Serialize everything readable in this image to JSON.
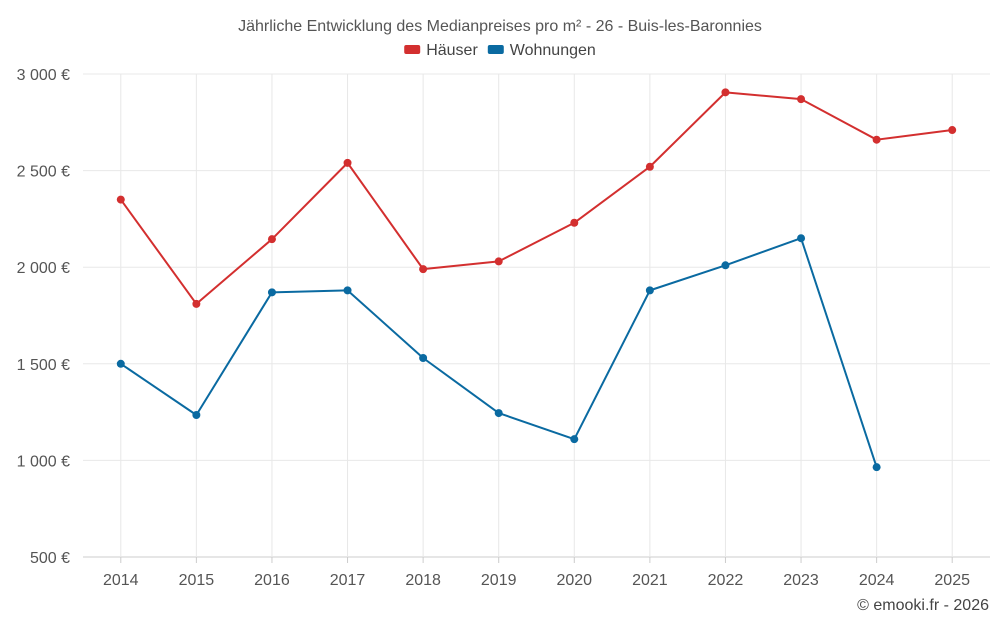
{
  "chart_data": {
    "type": "line",
    "title": "Jährliche Entwicklung des Medianpreises pro m² - 26 - Buis-les-Baronnies",
    "categories": [
      "2014",
      "2015",
      "2016",
      "2017",
      "2018",
      "2019",
      "2020",
      "2021",
      "2022",
      "2023",
      "2024",
      "2025"
    ],
    "y_ticks": [
      500,
      1000,
      1500,
      2000,
      2500,
      3000
    ],
    "y_tick_labels": [
      "500 €",
      "1 000 €",
      "1 500 €",
      "2 000 €",
      "2 500 €",
      "3 000 €"
    ],
    "ylim": [
      500,
      3000
    ],
    "grid": true,
    "legend_position": "top-center",
    "series": [
      {
        "name": "Häuser",
        "color": "#d32f2f",
        "values": [
          2350,
          1810,
          2145,
          2540,
          1990,
          2030,
          2230,
          2520,
          2905,
          2870,
          2660,
          2710
        ]
      },
      {
        "name": "Wohnungen",
        "color": "#0a6aa1",
        "values": [
          1500,
          1235,
          1870,
          1880,
          1530,
          1245,
          1110,
          1880,
          2010,
          2150,
          965,
          null
        ]
      }
    ]
  },
  "credit": "© emooki.fr - 2026"
}
